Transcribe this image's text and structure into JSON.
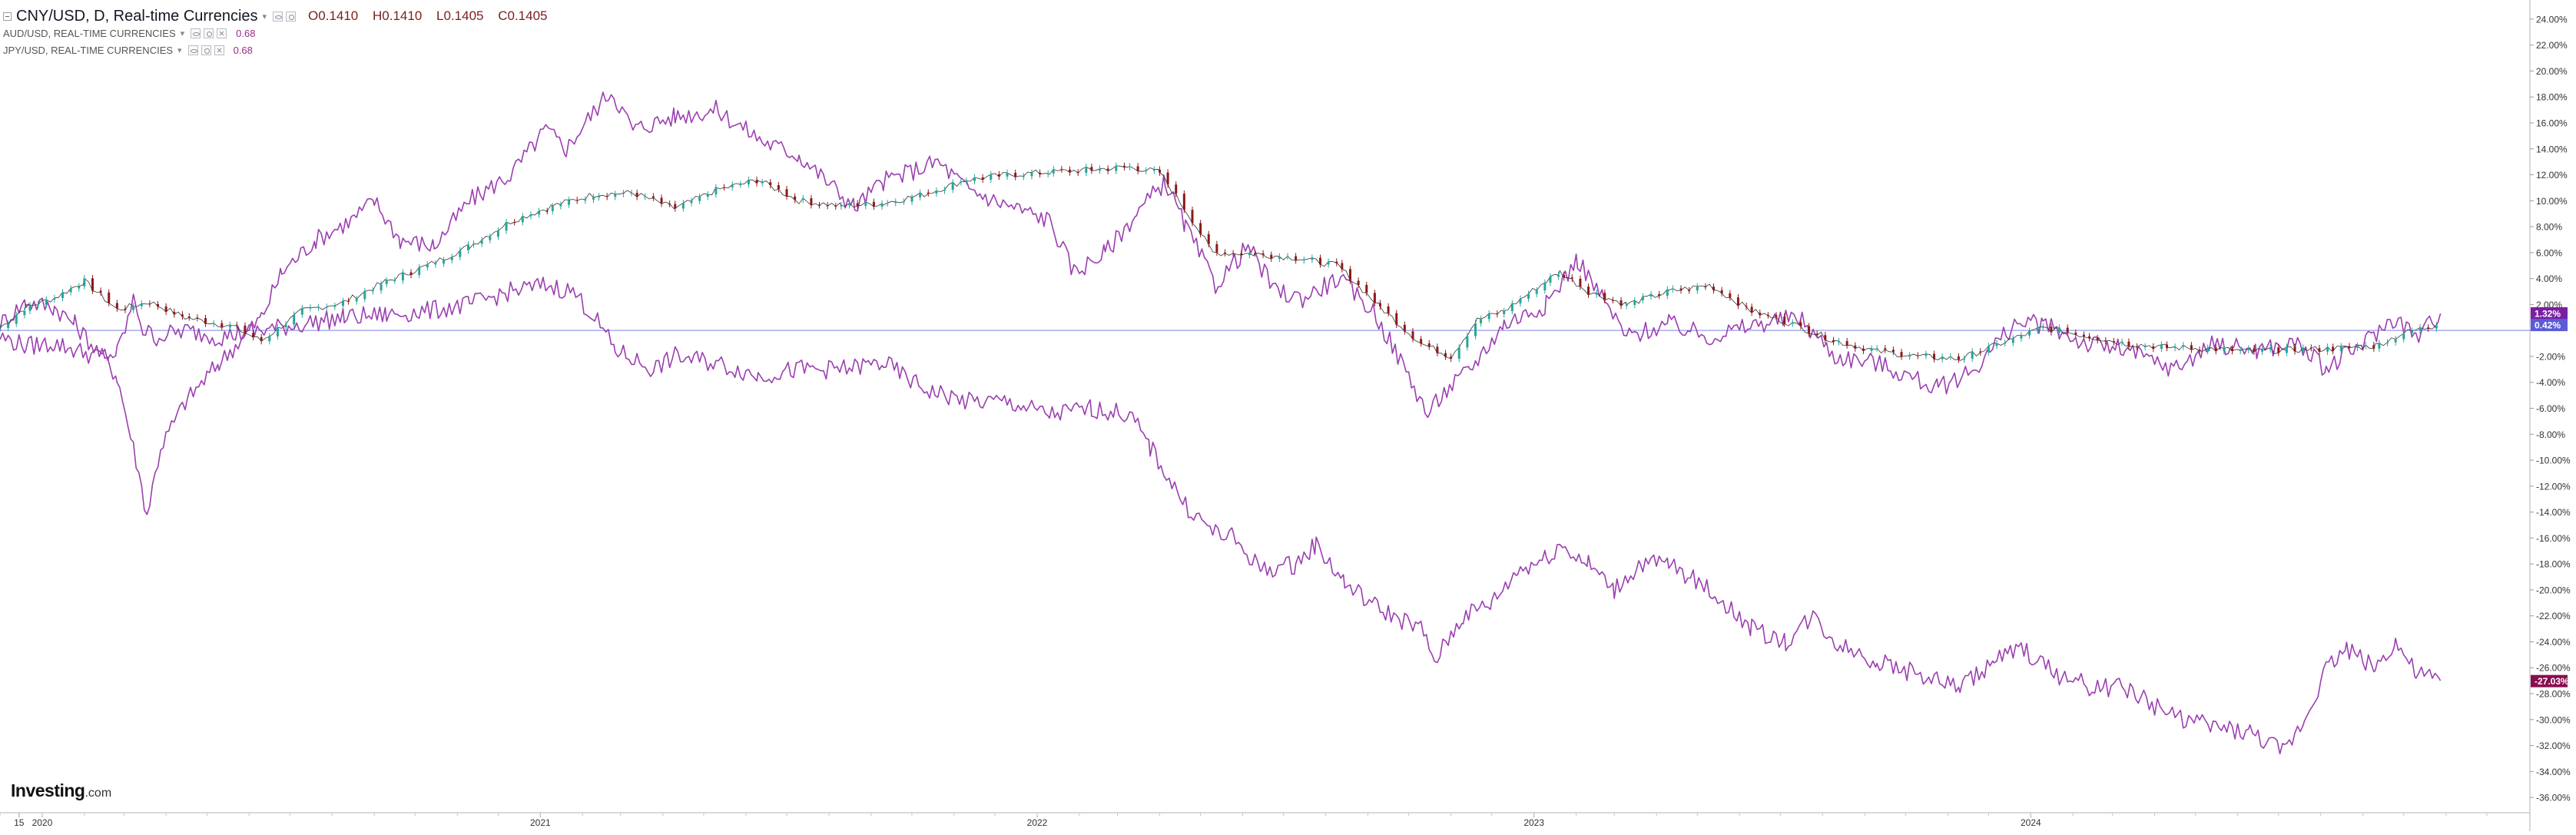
{
  "legend": {
    "main": {
      "title": "CNY/USD, D, Real-time Currencies",
      "open": "O0.1410",
      "high": "H0.1410",
      "low": "L0.1405",
      "close": "C0.1405"
    },
    "series": [
      {
        "label": "AUD/USD, REAL-TIME CURRENCIES",
        "value": "0.68"
      },
      {
        "label": "JPY/USD, REAL-TIME CURRENCIES",
        "value": "0.68"
      }
    ]
  },
  "brand": {
    "name": "Investing",
    "suffix": ".com"
  },
  "colors": {
    "candle_up": "#26a69a",
    "candle_down": "#8b1a1a",
    "compare_line": "#9b3fb0",
    "zero_line": "#7b83e0",
    "badge_cny": "#5b5bd6",
    "badge_compare": "#7b1fa2",
    "badge_jpy": "#880e4f"
  },
  "chart_data": {
    "type": "line",
    "title": "CNY/USD, D, Real-time Currencies",
    "y_unit": "%",
    "ylim": [
      -37,
      25
    ],
    "y_ticks": [
      24,
      22,
      20,
      18,
      16,
      14,
      12,
      10,
      8,
      6,
      4,
      2,
      0,
      -2,
      -4,
      -6,
      -8,
      -10,
      -12,
      -14,
      -16,
      -18,
      -20,
      -22,
      -24,
      -26,
      -28,
      -30,
      -32,
      -34,
      -36
    ],
    "y_tick_labels": [
      "24.00%",
      "22.00%",
      "20.00%",
      "18.00%",
      "16.00%",
      "14.00%",
      "12.00%",
      "10.00%",
      "8.00%",
      "6.00%",
      "4.00%",
      "2.00%",
      "",
      "-2.00%",
      "-4.00%",
      "-6.00%",
      "-8.00%",
      "-10.00%",
      "-12.00%",
      "-14.00%",
      "-16.00%",
      "-18.00%",
      "-20.00%",
      "-22.00%",
      "-24.00%",
      "-26.00%",
      "-28.00%",
      "-30.00%",
      "-32.00%",
      "-34.00%",
      "-36.00%"
    ],
    "xlim": [
      "2019-12-01",
      "2024-12-31"
    ],
    "x_ticks": [
      {
        "date": "2019-12-15",
        "label": "15"
      },
      {
        "date": "2020-01-01",
        "label": "2020"
      },
      {
        "date": "2021-01-01",
        "label": "2021"
      },
      {
        "date": "2022-01-01",
        "label": "2022"
      },
      {
        "date": "2023-01-01",
        "label": "2023"
      },
      {
        "date": "2024-01-01",
        "label": "2024"
      }
    ],
    "series": [
      {
        "name": "CNY/USD",
        "kind": "candles",
        "points": [
          [
            "2019-12-01",
            0.2
          ],
          [
            "2019-12-20",
            1.8
          ],
          [
            "2020-01-10",
            2.5
          ],
          [
            "2020-02-01",
            3.8
          ],
          [
            "2020-02-25",
            1.6
          ],
          [
            "2020-03-20",
            2.2
          ],
          [
            "2020-04-15",
            1.0
          ],
          [
            "2020-05-20",
            0.3
          ],
          [
            "2020-06-10",
            -0.8
          ],
          [
            "2020-07-10",
            1.5
          ],
          [
            "2020-08-10",
            2.2
          ],
          [
            "2020-09-10",
            3.8
          ],
          [
            "2020-10-10",
            5.0
          ],
          [
            "2020-11-10",
            6.5
          ],
          [
            "2020-12-10",
            8.4
          ],
          [
            "2021-01-10",
            9.6
          ],
          [
            "2021-02-10",
            10.5
          ],
          [
            "2021-03-10",
            10.6
          ],
          [
            "2021-04-10",
            9.4
          ],
          [
            "2021-05-10",
            10.8
          ],
          [
            "2021-06-10",
            11.6
          ],
          [
            "2021-07-10",
            10.0
          ],
          [
            "2021-08-10",
            9.6
          ],
          [
            "2021-09-10",
            9.8
          ],
          [
            "2021-10-10",
            10.5
          ],
          [
            "2021-11-10",
            11.6
          ],
          [
            "2021-12-10",
            12.0
          ],
          [
            "2022-01-10",
            12.2
          ],
          [
            "2022-02-10",
            12.4
          ],
          [
            "2022-03-10",
            12.6
          ],
          [
            "2022-04-01",
            12.2
          ],
          [
            "2022-04-25",
            8.5
          ],
          [
            "2022-05-10",
            6.0
          ],
          [
            "2022-06-10",
            5.9
          ],
          [
            "2022-07-10",
            5.6
          ],
          [
            "2022-08-10",
            5.0
          ],
          [
            "2022-09-10",
            1.8
          ],
          [
            "2022-10-10",
            -1.0
          ],
          [
            "2022-11-01",
            -2.0
          ],
          [
            "2022-11-20",
            0.8
          ],
          [
            "2022-12-10",
            1.5
          ],
          [
            "2023-01-10",
            3.8
          ],
          [
            "2023-01-20",
            4.5
          ],
          [
            "2023-02-10",
            3.0
          ],
          [
            "2023-03-10",
            2.0
          ],
          [
            "2023-04-10",
            3.0
          ],
          [
            "2023-05-10",
            3.5
          ],
          [
            "2023-06-10",
            1.5
          ],
          [
            "2023-07-10",
            0.5
          ],
          [
            "2023-08-10",
            -0.8
          ],
          [
            "2023-09-10",
            -1.6
          ],
          [
            "2023-10-10",
            -2.0
          ],
          [
            "2023-11-10",
            -2.2
          ],
          [
            "2023-12-10",
            -1.0
          ],
          [
            "2024-01-10",
            0.2
          ],
          [
            "2024-02-10",
            -0.4
          ],
          [
            "2024-03-10",
            -1.0
          ],
          [
            "2024-04-10",
            -1.3
          ],
          [
            "2024-05-10",
            -1.4
          ],
          [
            "2024-06-10",
            -1.6
          ],
          [
            "2024-07-10",
            -1.5
          ],
          [
            "2024-08-10",
            -1.4
          ],
          [
            "2024-09-10",
            -1.2
          ],
          [
            "2024-10-01",
            -0.2
          ],
          [
            "2024-10-25",
            0.4
          ]
        ]
      },
      {
        "name": "AUD/USD",
        "kind": "line",
        "points": [
          [
            "2019-12-01",
            0.5
          ],
          [
            "2019-12-20",
            2.2
          ],
          [
            "2020-01-10",
            1.8
          ],
          [
            "2020-01-25",
            0.5
          ],
          [
            "2020-02-10",
            -1.5
          ],
          [
            "2020-02-25",
            -3.5
          ],
          [
            "2020-03-10",
            -10.0
          ],
          [
            "2020-03-18",
            -14.2
          ],
          [
            "2020-03-28",
            -9.0
          ],
          [
            "2020-04-15",
            -5.5
          ],
          [
            "2020-05-10",
            -2.5
          ],
          [
            "2020-06-10",
            1.0
          ],
          [
            "2020-06-25",
            4.5
          ],
          [
            "2020-07-20",
            7.0
          ],
          [
            "2020-08-15",
            8.5
          ],
          [
            "2020-09-01",
            10.0
          ],
          [
            "2020-09-20",
            7.0
          ],
          [
            "2020-10-15",
            6.5
          ],
          [
            "2020-11-10",
            10.0
          ],
          [
            "2020-12-10",
            12.0
          ],
          [
            "2021-01-05",
            15.5
          ],
          [
            "2021-01-20",
            14.0
          ],
          [
            "2021-02-10",
            17.0
          ],
          [
            "2021-02-22",
            18.5
          ],
          [
            "2021-03-10",
            15.5
          ],
          [
            "2021-04-10",
            16.5
          ],
          [
            "2021-05-10",
            17.0
          ],
          [
            "2021-06-15",
            14.5
          ],
          [
            "2021-07-10",
            13.5
          ],
          [
            "2021-08-20",
            9.5
          ],
          [
            "2021-09-10",
            11.5
          ],
          [
            "2021-10-20",
            13.0
          ],
          [
            "2021-11-10",
            11.0
          ],
          [
            "2021-12-01",
            10.0
          ],
          [
            "2022-01-10",
            8.5
          ],
          [
            "2022-01-28",
            4.5
          ],
          [
            "2022-02-20",
            6.0
          ],
          [
            "2022-03-15",
            9.0
          ],
          [
            "2022-04-05",
            11.5
          ],
          [
            "2022-04-20",
            8.0
          ],
          [
            "2022-05-12",
            3.5
          ],
          [
            "2022-06-05",
            6.5
          ],
          [
            "2022-06-25",
            3.0
          ],
          [
            "2022-07-15",
            2.5
          ],
          [
            "2022-08-10",
            4.0
          ],
          [
            "2022-09-05",
            1.5
          ],
          [
            "2022-10-01",
            -3.5
          ],
          [
            "2022-10-15",
            -6.5
          ],
          [
            "2022-10-25",
            -5.0
          ],
          [
            "2022-11-15",
            -3.0
          ],
          [
            "2022-12-10",
            0.5
          ],
          [
            "2023-01-10",
            2.0
          ],
          [
            "2023-02-02",
            5.5
          ],
          [
            "2023-02-20",
            2.5
          ],
          [
            "2023-03-10",
            -0.5
          ],
          [
            "2023-04-10",
            0.5
          ],
          [
            "2023-05-10",
            -0.5
          ],
          [
            "2023-06-15",
            0.5
          ],
          [
            "2023-07-15",
            1.0
          ],
          [
            "2023-08-10",
            -2.0
          ],
          [
            "2023-09-10",
            -2.5
          ],
          [
            "2023-10-25",
            -4.5
          ],
          [
            "2023-11-20",
            -3.0
          ],
          [
            "2023-12-20",
            0.5
          ],
          [
            "2024-01-10",
            0.5
          ],
          [
            "2024-02-10",
            -1.0
          ],
          [
            "2024-03-10",
            -1.5
          ],
          [
            "2024-04-15",
            -3.0
          ],
          [
            "2024-05-15",
            -1.0
          ],
          [
            "2024-06-15",
            -1.5
          ],
          [
            "2024-07-15",
            -1.0
          ],
          [
            "2024-08-05",
            -3.0
          ],
          [
            "2024-09-01",
            -1.0
          ],
          [
            "2024-09-25",
            1.0
          ],
          [
            "2024-10-10",
            -0.5
          ],
          [
            "2024-10-28",
            1.3
          ]
        ]
      },
      {
        "name": "JPY/USD",
        "kind": "line",
        "points": [
          [
            "2019-12-01",
            -0.5
          ],
          [
            "2019-12-20",
            -1.2
          ],
          [
            "2020-01-10",
            -1.0
          ],
          [
            "2020-01-25",
            -1.5
          ],
          [
            "2020-02-10",
            -2.0
          ],
          [
            "2020-02-25",
            -1.8
          ],
          [
            "2020-03-09",
            2.5
          ],
          [
            "2020-03-15",
            0.0
          ],
          [
            "2020-03-25",
            -0.5
          ],
          [
            "2020-04-15",
            0.0
          ],
          [
            "2020-05-10",
            -0.5
          ],
          [
            "2020-06-10",
            0.0
          ],
          [
            "2020-07-10",
            0.5
          ],
          [
            "2020-08-10",
            1.0
          ],
          [
            "2020-09-10",
            1.2
          ],
          [
            "2020-10-10",
            1.5
          ],
          [
            "2020-11-10",
            2.0
          ],
          [
            "2020-12-10",
            3.0
          ],
          [
            "2021-01-05",
            3.5
          ],
          [
            "2021-01-25",
            3.0
          ],
          [
            "2021-02-10",
            1.0
          ],
          [
            "2021-02-25",
            -1.5
          ],
          [
            "2021-03-25",
            -3.0
          ],
          [
            "2021-04-10",
            -2.0
          ],
          [
            "2021-05-10",
            -2.5
          ],
          [
            "2021-06-10",
            -3.5
          ],
          [
            "2021-07-10",
            -3.0
          ],
          [
            "2021-08-10",
            -3.0
          ],
          [
            "2021-09-10",
            -2.5
          ],
          [
            "2021-10-10",
            -4.5
          ],
          [
            "2021-11-10",
            -5.5
          ],
          [
            "2021-12-10",
            -5.5
          ],
          [
            "2022-01-10",
            -6.5
          ],
          [
            "2022-02-10",
            -6.0
          ],
          [
            "2022-03-10",
            -6.5
          ],
          [
            "2022-03-25",
            -9.0
          ],
          [
            "2022-04-20",
            -13.5
          ],
          [
            "2022-05-10",
            -15.5
          ],
          [
            "2022-05-25",
            -16.0
          ],
          [
            "2022-06-15",
            -18.5
          ],
          [
            "2022-07-10",
            -18.0
          ],
          [
            "2022-07-25",
            -16.5
          ],
          [
            "2022-08-15",
            -19.5
          ],
          [
            "2022-09-10",
            -21.5
          ],
          [
            "2022-10-10",
            -23.0
          ],
          [
            "2022-10-20",
            -25.5
          ],
          [
            "2022-11-10",
            -22.0
          ],
          [
            "2022-12-01",
            -21.0
          ],
          [
            "2022-12-20",
            -18.5
          ],
          [
            "2023-01-10",
            -17.5
          ],
          [
            "2023-01-20",
            -16.5
          ],
          [
            "2023-02-10",
            -18.0
          ],
          [
            "2023-03-01",
            -20.0
          ],
          [
            "2023-03-20",
            -18.0
          ],
          [
            "2023-04-10",
            -18.0
          ],
          [
            "2023-05-10",
            -20.0
          ],
          [
            "2023-06-10",
            -23.0
          ],
          [
            "2023-07-05",
            -24.0
          ],
          [
            "2023-07-25",
            -22.0
          ],
          [
            "2023-08-10",
            -24.0
          ],
          [
            "2023-09-10",
            -25.5
          ],
          [
            "2023-10-10",
            -26.5
          ],
          [
            "2023-11-10",
            -27.5
          ],
          [
            "2023-12-05",
            -25.5
          ],
          [
            "2023-12-25",
            -24.5
          ],
          [
            "2024-01-20",
            -26.5
          ],
          [
            "2024-02-15",
            -27.5
          ],
          [
            "2024-03-10",
            -27.5
          ],
          [
            "2024-04-10",
            -29.5
          ],
          [
            "2024-05-10",
            -30.5
          ],
          [
            "2024-06-10",
            -31.0
          ],
          [
            "2024-07-05",
            -32.5
          ],
          [
            "2024-07-20",
            -30.0
          ],
          [
            "2024-08-05",
            -26.0
          ],
          [
            "2024-08-20",
            -24.5
          ],
          [
            "2024-09-10",
            -26.0
          ],
          [
            "2024-09-25",
            -24.0
          ],
          [
            "2024-10-10",
            -26.5
          ],
          [
            "2024-10-28",
            -27.0
          ]
        ]
      }
    ],
    "last_value_badges": [
      {
        "series": "AUD/USD",
        "label": "1.32%",
        "value": 1.32
      },
      {
        "series": "CNY/USD",
        "label": "0.42%",
        "value": 0.42
      },
      {
        "series": "JPY/USD",
        "label": "-27.03%",
        "value": -27.03
      }
    ],
    "zero_line": 0,
    "grid": false,
    "legend_position": "top-left"
  }
}
